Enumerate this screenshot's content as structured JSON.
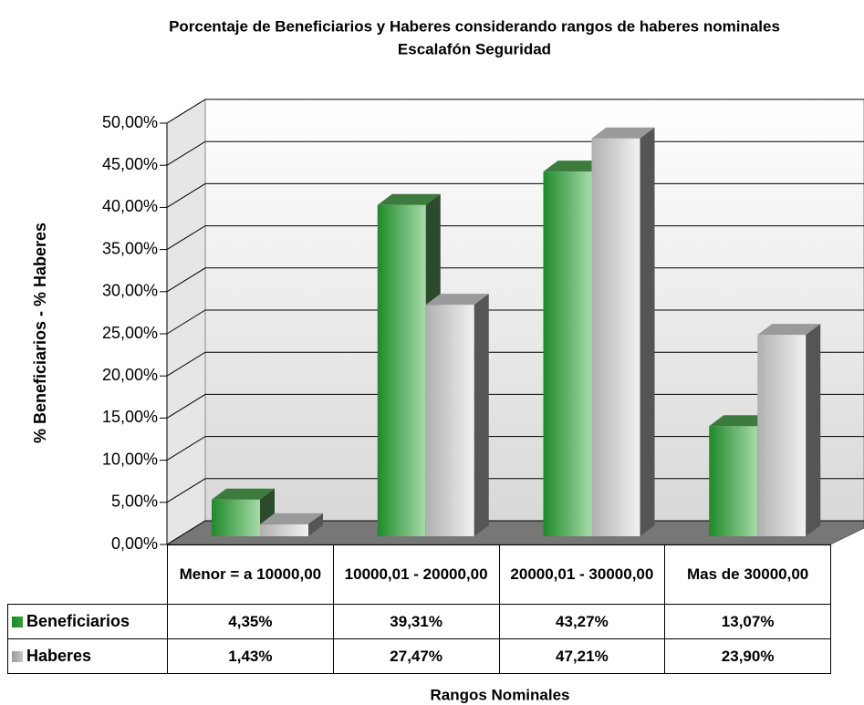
{
  "chart_data": {
    "type": "bar3d",
    "title": "Porcentaje de Beneficiarios y Haberes considerando rangos de haberes nominales",
    "subtitle": "Escalafón Seguridad",
    "y_label": "% Beneficiarios - % Haberes",
    "x_label": "Rangos Nominales",
    "categories": [
      "Menor = a 10000,00",
      "10000,01 - 20000,00",
      "20000,01 - 30000,00",
      "Mas de 30000,00"
    ],
    "series": [
      {
        "name": "Beneficiarios",
        "color": "#2e9e3a",
        "values": [
          4.35,
          39.31,
          43.27,
          13.07
        ],
        "value_labels": [
          "4,35%",
          "39,31%",
          "43,27%",
          "13,07%"
        ]
      },
      {
        "name": "Haberes",
        "color": "#c8c8c8",
        "values": [
          1.43,
          27.47,
          47.21,
          23.9
        ],
        "value_labels": [
          "1,43%",
          "27,47%",
          "47,21%",
          "23,90%"
        ]
      }
    ],
    "ylim": [
      0,
      50
    ],
    "yticks": [
      {
        "value": 0,
        "label": "0,00%"
      },
      {
        "value": 5,
        "label": "5,00%"
      },
      {
        "value": 10,
        "label": "10,00%"
      },
      {
        "value": 15,
        "label": "15,00%"
      },
      {
        "value": 20,
        "label": "20,00%"
      },
      {
        "value": 25,
        "label": "25,00%"
      },
      {
        "value": 30,
        "label": "30,00%"
      },
      {
        "value": 35,
        "label": "35,00%"
      },
      {
        "value": 40,
        "label": "40,00%"
      },
      {
        "value": 45,
        "label": "45,00%"
      },
      {
        "value": 50,
        "label": "50,00%"
      }
    ],
    "grid": true
  }
}
